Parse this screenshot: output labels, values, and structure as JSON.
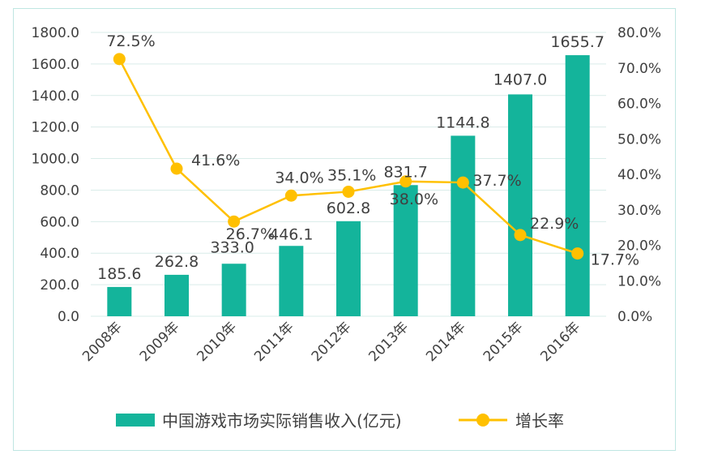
{
  "chart_data": {
    "type": "bar+line",
    "title": "",
    "categories": [
      "2008年",
      "2009年",
      "2010年",
      "2011年",
      "2012年",
      "2013年",
      "2014年",
      "2015年",
      "2016年"
    ],
    "series": [
      {
        "name": "中国游戏市场实际销售收入(亿元)",
        "type": "bar",
        "axis": "left",
        "values": [
          185.6,
          262.8,
          333.0,
          446.1,
          602.8,
          831.7,
          1144.8,
          1407.0,
          1655.7
        ],
        "labels": [
          "185.6",
          "262.8",
          "333.0",
          "446.1",
          "602.8",
          "831.7",
          "1144.8",
          "1407.0",
          "1655.7"
        ]
      },
      {
        "name": "增长率",
        "type": "line",
        "axis": "right",
        "values": [
          72.5,
          41.6,
          26.7,
          34.0,
          35.1,
          38.0,
          37.7,
          22.9,
          17.7
        ],
        "labels": [
          "72.5%",
          "41.6%",
          "26.7%",
          "34.0%",
          "35.1%",
          "38.0%",
          "37.7%",
          "22.9%",
          "17.7%"
        ]
      }
    ],
    "y_left": {
      "range": [
        0,
        1800
      ],
      "tick_labels": [
        "0.0",
        "200.0",
        "400.0",
        "600.0",
        "800.0",
        "1000.0",
        "1200.0",
        "1400.0",
        "1600.0",
        "1800.0"
      ]
    },
    "y_right": {
      "range": [
        0,
        80
      ],
      "tick_labels": [
        "0.0%",
        "10.0%",
        "20.0%",
        "30.0%",
        "40.0%",
        "50.0%",
        "60.0%",
        "70.0%",
        "80.0%"
      ]
    },
    "grid": true,
    "legend_position": "bottom",
    "colors": {
      "bar": "#14b49b",
      "line": "#ffc000",
      "grid": "#d9ece9"
    }
  }
}
